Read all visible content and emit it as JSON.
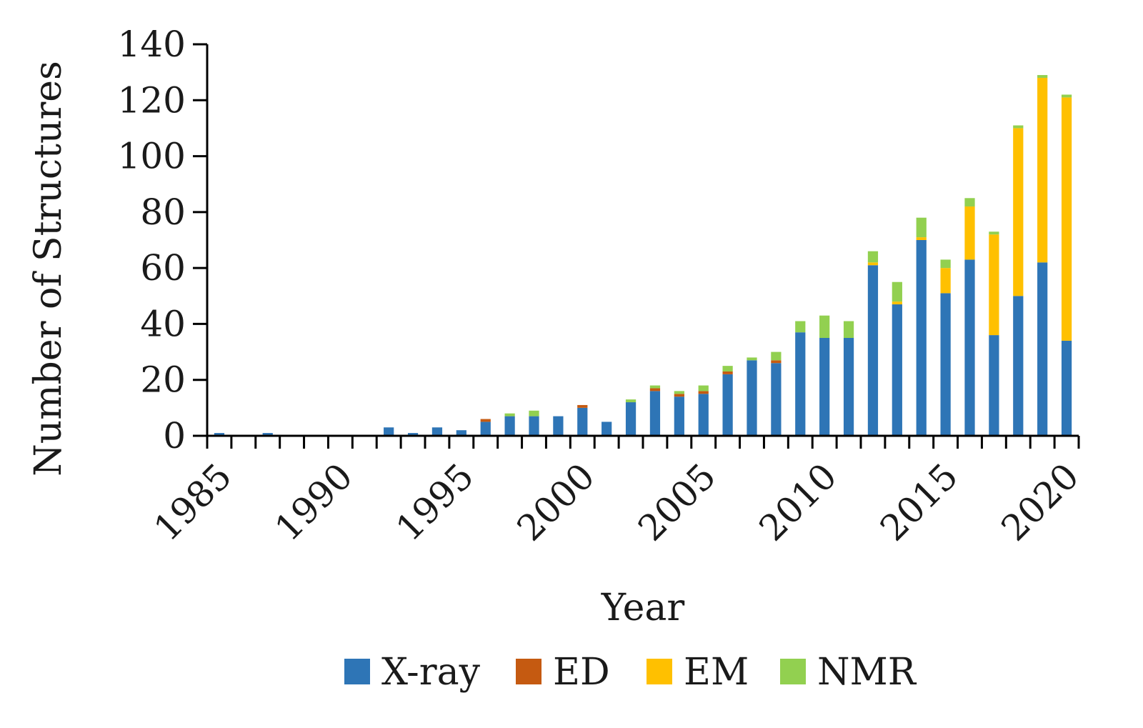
{
  "chart_data": {
    "type": "bar",
    "stacked": true,
    "title": "",
    "xlabel": "Year",
    "ylabel": "Number of Structures",
    "ylim": [
      0,
      140
    ],
    "yticks": [
      0,
      20,
      40,
      60,
      80,
      100,
      120,
      140
    ],
    "xticks": [
      1985,
      1990,
      1995,
      2000,
      2005,
      2010,
      2015,
      2020
    ],
    "grid": false,
    "legend_position": "bottom",
    "categories": [
      1985,
      1986,
      1987,
      1988,
      1989,
      1990,
      1991,
      1992,
      1993,
      1994,
      1995,
      1996,
      1997,
      1998,
      1999,
      2000,
      2001,
      2002,
      2003,
      2004,
      2005,
      2006,
      2007,
      2008,
      2009,
      2010,
      2011,
      2012,
      2013,
      2014,
      2015,
      2016,
      2017,
      2018,
      2019,
      2020
    ],
    "series": [
      {
        "name": "X-ray",
        "color": "#2e75b6",
        "values": [
          1,
          0,
          1,
          0,
          0,
          0,
          0,
          3,
          1,
          3,
          2,
          5,
          7,
          7,
          7,
          10,
          5,
          12,
          16,
          14,
          15,
          22,
          27,
          26,
          37,
          35,
          35,
          61,
          47,
          70,
          51,
          63,
          36,
          50,
          62,
          34
        ]
      },
      {
        "name": "ED",
        "color": "#c55a11",
        "values": [
          0,
          0,
          0,
          0,
          0,
          0,
          0,
          0,
          0,
          0,
          0,
          1,
          0,
          0,
          0,
          1,
          0,
          0,
          1,
          1,
          1,
          1,
          0,
          1,
          0,
          0,
          0,
          0,
          0,
          0,
          0,
          0,
          0,
          0,
          0,
          0
        ]
      },
      {
        "name": "EM",
        "color": "#ffc000",
        "values": [
          0,
          0,
          0,
          0,
          0,
          0,
          0,
          0,
          0,
          0,
          0,
          0,
          0,
          0,
          0,
          0,
          0,
          0,
          0,
          0,
          0,
          0,
          0,
          0,
          0,
          0,
          0,
          1,
          1,
          1,
          9,
          19,
          36,
          60,
          66,
          87
        ]
      },
      {
        "name": "NMR",
        "color": "#92d050",
        "values": [
          0,
          0,
          0,
          0,
          0,
          0,
          0,
          0,
          0,
          0,
          0,
          0,
          1,
          2,
          0,
          0,
          0,
          1,
          1,
          1,
          2,
          2,
          1,
          3,
          4,
          8,
          6,
          4,
          7,
          7,
          3,
          3,
          1,
          1,
          1,
          1
        ]
      }
    ]
  }
}
